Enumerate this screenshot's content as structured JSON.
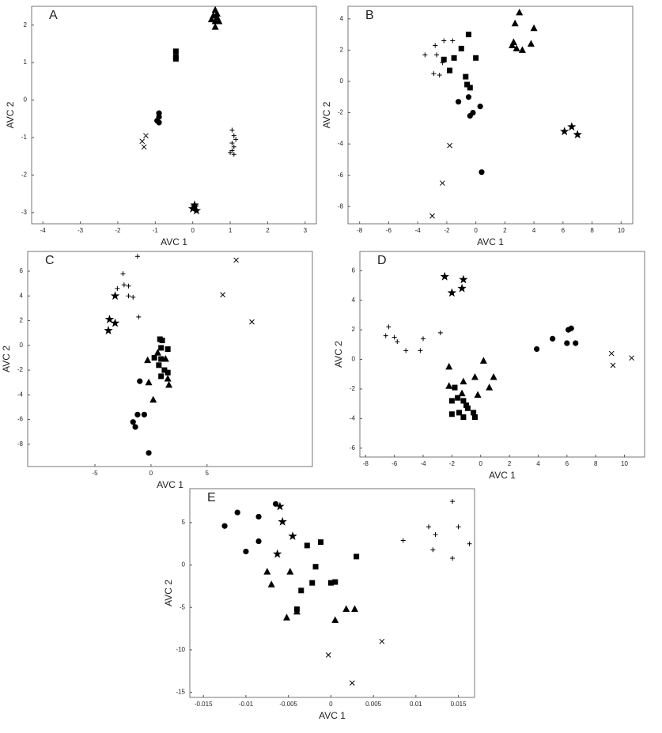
{
  "chart_data": [
    {
      "type": "scatter",
      "panel_label": "A",
      "xlabel": "AVC 1",
      "ylabel": "AVC 2",
      "xlim": [
        -4.3,
        3.3
      ],
      "ylim": [
        -3.3,
        2.5
      ],
      "xticks": [
        -4,
        -3,
        -2,
        -1,
        0,
        1,
        2,
        3
      ],
      "yticks": [
        -3,
        -2,
        -1,
        0,
        1,
        2
      ],
      "series": [
        {
          "marker": "triangle",
          "color": "#000000",
          "x": [
            0.6,
            0.55,
            0.65,
            0.6,
            0.7,
            0.6,
            0.5,
            0.65
          ],
          "y": [
            2.4,
            2.25,
            2.2,
            2.1,
            2.1,
            1.95,
            2.15,
            2.3
          ]
        },
        {
          "marker": "square",
          "color": "#000000",
          "x": [
            -0.45,
            -0.45,
            -0.45
          ],
          "y": [
            1.3,
            1.1,
            1.15
          ]
        },
        {
          "marker": "circle",
          "color": "#000000",
          "x": [
            -0.9,
            -0.9,
            -0.95,
            -0.9
          ],
          "y": [
            -0.35,
            -0.45,
            -0.55,
            -0.6
          ]
        },
        {
          "marker": "x",
          "color": "#000000",
          "x": [
            -1.25,
            -1.35,
            -1.3
          ],
          "y": [
            -0.95,
            -1.1,
            -1.25
          ]
        },
        {
          "marker": "plus",
          "color": "#000000",
          "x": [
            1.05,
            1.1,
            1.15,
            1.05,
            1.1,
            1.05,
            1.0,
            1.1
          ],
          "y": [
            -0.8,
            -0.95,
            -1.05,
            -1.15,
            -1.25,
            -1.35,
            -1.4,
            -1.45
          ]
        },
        {
          "marker": "star",
          "color": "#000000",
          "x": [
            0.05,
            0.0,
            0.1,
            0.05
          ],
          "y": [
            -2.8,
            -2.9,
            -2.95,
            -2.85
          ]
        }
      ]
    },
    {
      "type": "scatter",
      "panel_label": "B",
      "xlabel": "AVC 1",
      "ylabel": "AVC 2",
      "xlim": [
        -8.8,
        10.8
      ],
      "ylim": [
        -9.1,
        4.8
      ],
      "xticks": [
        -8,
        -6,
        -4,
        -2,
        0,
        2,
        4,
        6,
        8,
        10
      ],
      "yticks": [
        -8,
        -6,
        -4,
        -2,
        0,
        2,
        4
      ],
      "series": [
        {
          "marker": "triangle",
          "color": "#000000",
          "x": [
            3,
            2.7,
            4,
            2.5,
            2.8,
            3.2,
            3.8,
            2.6
          ],
          "y": [
            4.4,
            3.7,
            3.4,
            2.3,
            2.1,
            2.0,
            2.4,
            2.5
          ]
        },
        {
          "marker": "square",
          "color": "#000000",
          "x": [
            -0.5,
            -1,
            -1.5,
            -2.2,
            0,
            -1.8,
            -0.7,
            -0.6,
            -0.4
          ],
          "y": [
            3,
            2.1,
            1.5,
            1.4,
            1.5,
            0.7,
            0.3,
            -0.2,
            -0.4
          ]
        },
        {
          "marker": "circle",
          "color": "#000000",
          "x": [
            -1.2,
            -0.5,
            0.3,
            -0.2,
            -0.4,
            0.4
          ],
          "y": [
            -1.3,
            -1.0,
            -1.6,
            -2.0,
            -2.2,
            -5.8
          ]
        },
        {
          "marker": "plus",
          "color": "#000000",
          "x": [
            -2.8,
            -2.2,
            -1.6,
            -3.5,
            -2.7,
            -2.3,
            -2.9,
            -2.5
          ],
          "y": [
            2.3,
            2.6,
            2.6,
            1.7,
            1.7,
            1.2,
            0.5,
            0.4
          ]
        },
        {
          "marker": "x",
          "color": "#000000",
          "x": [
            -1.8,
            -2.3,
            -3
          ],
          "y": [
            -4.1,
            -6.5,
            -8.6
          ]
        },
        {
          "marker": "star",
          "color": "#000000",
          "x": [
            6.1,
            6.6,
            7
          ],
          "y": [
            -3.2,
            -2.9,
            -3.4
          ]
        }
      ]
    },
    {
      "type": "scatter",
      "panel_label": "C",
      "xlabel": "AVC 1",
      "ylabel": "AVC 2",
      "xlim": [
        -11,
        14.4
      ],
      "ylim": [
        -9.8,
        7.6
      ],
      "xticks": [
        -5,
        0,
        5
      ],
      "yticks": [
        -8,
        -6,
        -4,
        -2,
        0,
        2,
        4,
        6
      ],
      "series": [
        {
          "marker": "plus",
          "color": "#000000",
          "x": [
            -1.2,
            -2.5,
            -2.4,
            -2,
            -3,
            -2,
            -1.6,
            -1.1
          ],
          "y": [
            7.2,
            5.8,
            4.9,
            4.8,
            4.6,
            4.0,
            3.9,
            2.3
          ]
        },
        {
          "marker": "star",
          "color": "#000000",
          "x": [
            -3.2,
            -3.7,
            -3.2,
            -3.8
          ],
          "y": [
            4.0,
            2.1,
            1.8,
            1.2
          ]
        },
        {
          "marker": "x",
          "color": "#000000",
          "x": [
            7.6,
            6.4,
            9
          ],
          "y": [
            6.9,
            4.1,
            1.9
          ]
        },
        {
          "marker": "square",
          "color": "#000000",
          "x": [
            0.8,
            1.0,
            0.9,
            1.5,
            0.3,
            0.9,
            0.7,
            1.2,
            0.9,
            1.5
          ],
          "y": [
            0.5,
            0.4,
            -0.2,
            -0.3,
            -1.0,
            -1.1,
            -1.6,
            -2.0,
            -2.5,
            -2.2
          ]
        },
        {
          "marker": "triangle",
          "color": "#000000",
          "x": [
            0.6,
            -0.3,
            1.3,
            1.5,
            -0.2,
            1.6,
            0.2
          ],
          "y": [
            -0.6,
            -1.2,
            -1.1,
            -2.7,
            -3.0,
            -3.2,
            -4.4
          ]
        },
        {
          "marker": "circle",
          "color": "#000000",
          "x": [
            -1.0,
            -1.2,
            -0.6,
            -1.6,
            -1.4,
            -0.2
          ],
          "y": [
            -2.9,
            -5.6,
            -5.6,
            -6.2,
            -6.6,
            -8.7
          ]
        }
      ]
    },
    {
      "type": "scatter",
      "panel_label": "D",
      "xlabel": "AVC 1",
      "ylabel": "AVC 2",
      "xlim": [
        -8.4,
        11.4
      ],
      "ylim": [
        -6.6,
        7.3
      ],
      "xticks": [
        -8,
        -6,
        -4,
        -2,
        0,
        2,
        4,
        6,
        8,
        10
      ],
      "yticks": [
        -6,
        -4,
        -2,
        0,
        2,
        4,
        6
      ],
      "series": [
        {
          "marker": "star",
          "color": "#000000",
          "x": [
            -2.5,
            -1.2,
            -2.0,
            -1.3
          ],
          "y": [
            5.6,
            5.4,
            4.5,
            4.8
          ]
        },
        {
          "marker": "plus",
          "color": "#000000",
          "x": [
            -6.4,
            -6.6,
            -6.0,
            -5.8,
            -4.0,
            -2.8,
            -5.2,
            -4.2
          ],
          "y": [
            2.2,
            1.6,
            1.5,
            1.2,
            1.4,
            1.8,
            0.6,
            0.6
          ]
        },
        {
          "marker": "circle",
          "color": "#000000",
          "x": [
            3.9,
            5.0,
            6.1,
            6.3,
            6.0,
            6.6
          ],
          "y": [
            0.7,
            1.4,
            2.0,
            2.1,
            1.1,
            1.1
          ]
        },
        {
          "marker": "x",
          "color": "#000000",
          "x": [
            9.1,
            9.2,
            10.5
          ],
          "y": [
            0.4,
            -0.4,
            0.1
          ]
        },
        {
          "marker": "triangle",
          "color": "#000000",
          "x": [
            -2.2,
            0.2,
            -0.4,
            0.9,
            -1.2,
            -2.2,
            -1.3,
            0.6,
            -0.2
          ],
          "y": [
            -0.5,
            -0.1,
            -1.2,
            -1.2,
            -1.5,
            -1.8,
            -2.3,
            -1.9,
            -2.4
          ]
        },
        {
          "marker": "square",
          "color": "#000000",
          "x": [
            -1.8,
            -1.6,
            -2.0,
            -1.2,
            -1.0,
            -2.0,
            -1.5,
            -1.2,
            -0.5,
            -0.4,
            -0.9
          ],
          "y": [
            -1.9,
            -2.6,
            -2.8,
            -2.8,
            -3.1,
            -3.7,
            -3.6,
            -3.9,
            -3.6,
            -3.9,
            -3.3
          ]
        }
      ]
    },
    {
      "type": "scatter",
      "panel_label": "E",
      "xlabel": "AVC 1",
      "ylabel": "AVC 2",
      "xlim": [
        -0.0166,
        0.0169
      ],
      "ylim": [
        -15.6,
        9.0
      ],
      "xticks": [
        -0.015,
        -0.01,
        -0.005,
        0,
        0.005,
        0.01,
        0.015
      ],
      "yticks": [
        -15,
        -10,
        -5,
        0,
        5
      ],
      "series": [
        {
          "marker": "circle",
          "color": "#000000",
          "x": [
            -0.0125,
            -0.011,
            -0.0085,
            -0.0065,
            -0.0085,
            -0.01
          ],
          "y": [
            4.6,
            6.2,
            5.7,
            7.2,
            2.8,
            1.6
          ]
        },
        {
          "marker": "star",
          "color": "#000000",
          "x": [
            -0.006,
            -0.0057,
            -0.0045,
            -0.0063
          ],
          "y": [
            6.9,
            5.1,
            3.4,
            1.3
          ]
        },
        {
          "marker": "square",
          "color": "#000000",
          "x": [
            -0.0012,
            -0.0028,
            -0.0018,
            -0.0022,
            -0.0035,
            0.0,
            0.0005,
            -0.004,
            0.003
          ],
          "y": [
            2.7,
            2.3,
            -0.2,
            -2.1,
            -3.0,
            -2.1,
            -2.0,
            -5.2,
            1.0
          ]
        },
        {
          "marker": "triangle",
          "color": "#000000",
          "x": [
            -0.0075,
            -0.007,
            -0.0048,
            -0.0052,
            -0.004,
            0.0005,
            0.0018,
            0.0028
          ],
          "y": [
            -0.8,
            -2.3,
            -0.8,
            -6.2,
            -5.5,
            -6.5,
            -5.2,
            -5.2
          ]
        },
        {
          "marker": "plus",
          "color": "#000000",
          "x": [
            0.0143,
            0.0115,
            0.015,
            0.0123,
            0.0085,
            0.0163,
            0.012,
            0.0143
          ],
          "y": [
            7.5,
            4.5,
            4.5,
            3.6,
            2.9,
            2.5,
            1.8,
            0.8
          ]
        },
        {
          "marker": "x",
          "color": "#000000",
          "x": [
            0.006,
            -0.0003,
            0.0025
          ],
          "y": [
            -9.0,
            -10.6,
            -13.9
          ]
        }
      ]
    }
  ]
}
